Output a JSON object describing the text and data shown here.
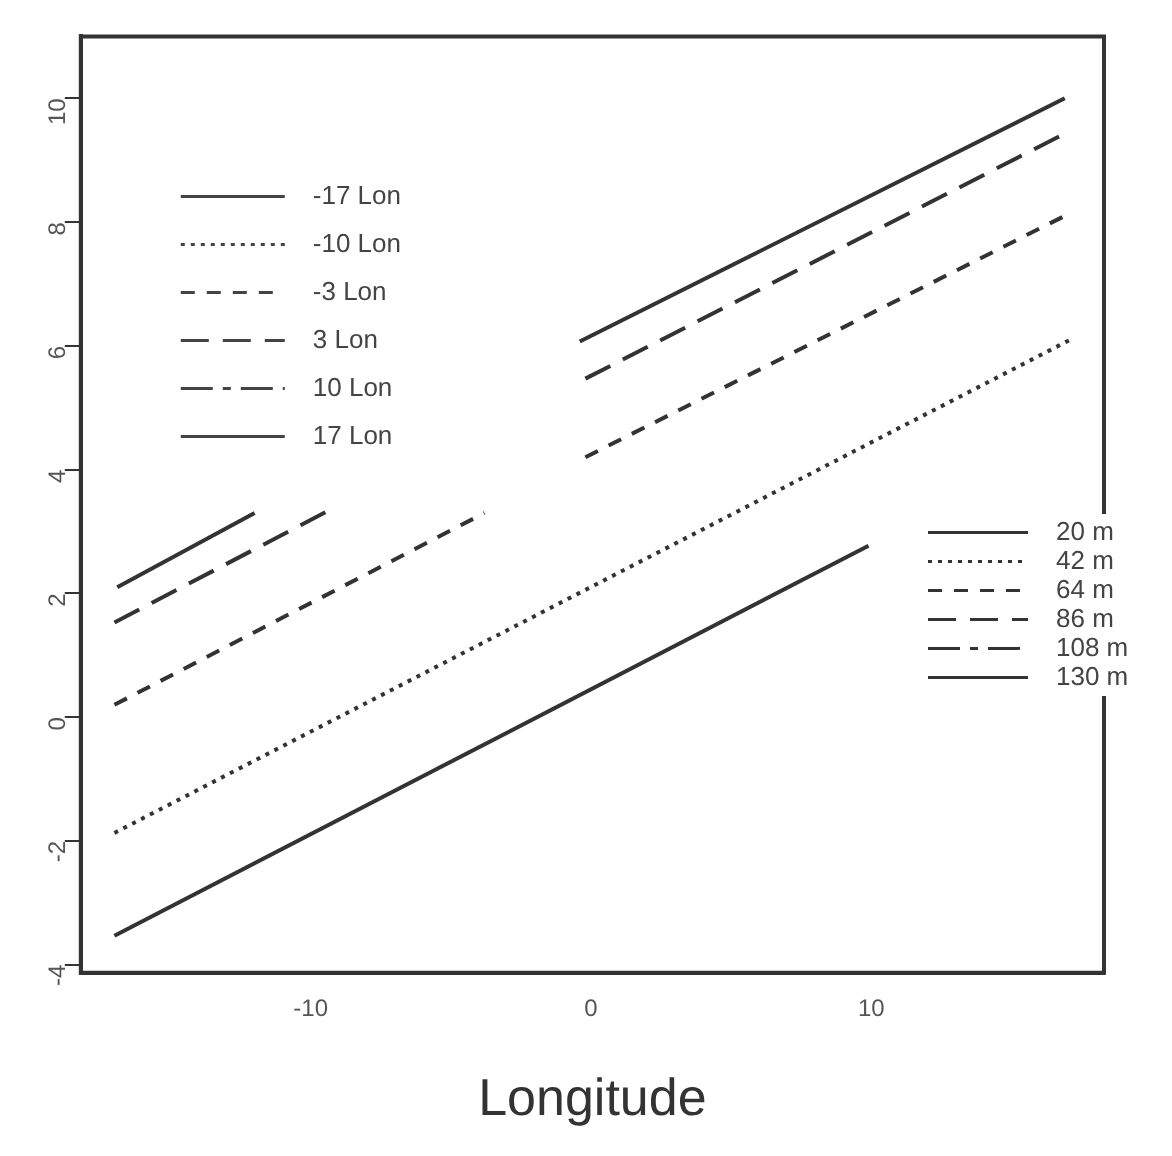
{
  "chart_data": {
    "type": "line",
    "xlabel": "Longitude",
    "xlim": [
      -18.2,
      18.3
    ],
    "ylim": [
      -4.13,
      11
    ],
    "xticks": [
      -10,
      0,
      10
    ],
    "yticks": [
      -4,
      -2,
      0,
      2,
      4,
      6,
      8,
      10
    ],
    "legend": "right",
    "grid": false,
    "series": [
      {
        "name": "-17 Lon",
        "color": "#444444",
        "line_style": "solid"
      },
      {
        "name": "-10 Lon",
        "color": "#444444",
        "line_style": "dotted"
      },
      {
        "name": "-3 Lon",
        "color": "#444444",
        "line_style": "dashed"
      },
      {
        "name": "3 Lon",
        "color": "#444444",
        "line_style": "dashed"
      },
      {
        "name": "10 Lon",
        "color": "#444444",
        "line_style": "dashed"
      },
      {
        "name": "17 Lon",
        "color": "#444444",
        "line_style": "solid"
      },
      {
        "name": "20 m",
        "color": "#333333",
        "line_style": "solid",
        "x": [
          -17,
          9.9
        ],
        "values": [
          -3.53,
          2.77
        ]
      },
      {
        "name": "42 m",
        "color": "#333333",
        "line_style": "dotted",
        "x": [
          -17,
          17.1
        ],
        "values": [
          -1.87,
          6.1
        ]
      },
      {
        "name": "64 m",
        "color": "#333333",
        "line_style": "dashed",
        "x": [
          -17,
          -3.8,
          -2,
          -0.2,
          16.9
        ],
        "values": [
          0.2,
          3.3,
          null,
          4.2,
          8.1
        ]
      },
      {
        "name": "86 m",
        "color": "#333333",
        "line_style": "dashed",
        "x": [
          -17,
          -9.4,
          -5,
          -0.2,
          16.9
        ],
        "values": [
          1.53,
          3.33,
          null,
          5.47,
          9.43
        ]
      },
      {
        "name": "108 m",
        "color": "#333333",
        "line_style": "dashed",
        "values": [
          null,
          null,
          null,
          null,
          null
        ]
      },
      {
        "name": "130 m",
        "color": "#333333",
        "line_style": "solid",
        "x": [
          -16.9,
          -12,
          -6,
          -0.4,
          16.9
        ],
        "values": [
          2.1,
          3.3,
          null,
          6.07,
          10.0
        ]
      }
    ]
  }
}
